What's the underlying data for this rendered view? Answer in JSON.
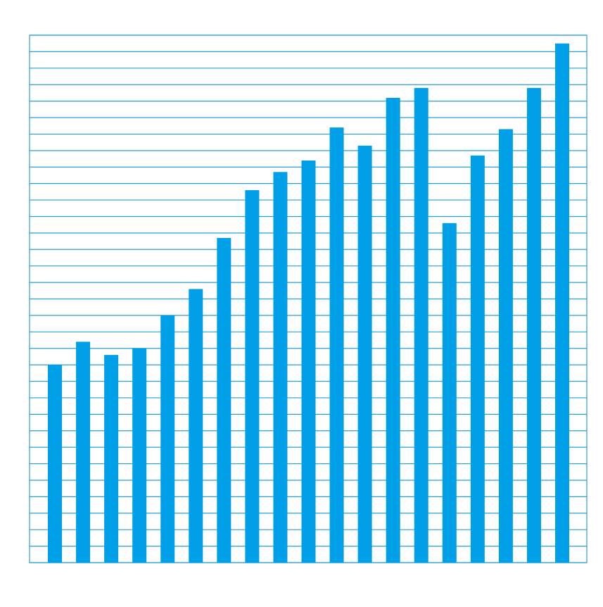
{
  "chart_data": {
    "type": "bar",
    "categories": [
      null,
      null,
      null,
      null,
      null,
      null,
      null,
      null,
      null,
      null,
      null,
      null,
      null,
      null,
      null,
      null,
      null,
      null,
      null
    ],
    "values": [
      12.0,
      13.4,
      12.6,
      13.0,
      15.0,
      16.6,
      19.7,
      22.6,
      23.7,
      24.4,
      26.4,
      25.3,
      28.2,
      28.8,
      20.6,
      24.7,
      26.3,
      28.8,
      31.5
    ],
    "color": "#00a0e9",
    "ylim": [
      0,
      32
    ],
    "yticks": [
      0,
      1,
      2,
      3,
      4,
      5,
      6,
      7,
      8,
      9,
      10,
      11,
      12,
      13,
      14,
      15,
      16,
      17,
      18,
      19,
      20,
      21,
      22,
      23,
      24,
      25,
      26,
      27,
      28,
      29,
      30,
      31,
      32
    ],
    "grid": true
  }
}
